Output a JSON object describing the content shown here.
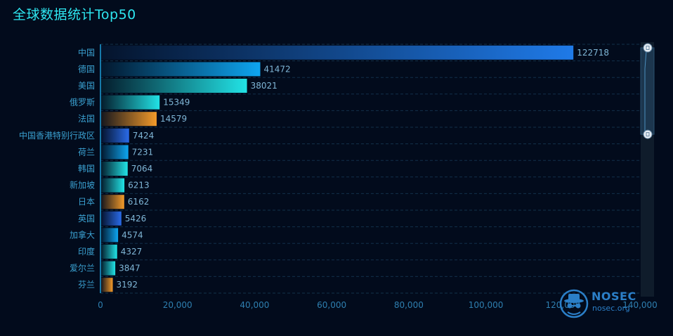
{
  "title": "全球数据统计Top50",
  "chart_data": {
    "type": "bar",
    "orientation": "horizontal",
    "categories": [
      "中国",
      "德国",
      "美国",
      "俄罗斯",
      "法国",
      "中国香港特别行政区",
      "荷兰",
      "韩国",
      "新加坡",
      "日本",
      "英国",
      "加拿大",
      "印度",
      "爱尔兰",
      "芬兰"
    ],
    "values": [
      122718,
      41472,
      38021,
      15349,
      14579,
      7424,
      7231,
      7064,
      6213,
      6162,
      5426,
      4574,
      4327,
      3847,
      3192
    ],
    "xlim": [
      0,
      140000
    ],
    "x_ticks": [
      "0",
      "20,000",
      "40,000",
      "60,000",
      "80,000",
      "100,000",
      "120,000",
      "140,000"
    ],
    "grid": true,
    "colors": {
      "blue": "#1f7ae8",
      "sky": "#0ea5f0",
      "cyan": "#22e3e6",
      "orange": "#f39a2a",
      "royal": "#2a6be8"
    },
    "bar_color_keys": [
      "blue",
      "sky",
      "cyan",
      "cyan",
      "orange",
      "royal",
      "sky",
      "cyan",
      "cyan",
      "orange",
      "royal",
      "sky",
      "cyan",
      "cyan",
      "orange"
    ]
  },
  "data_zoom": {
    "start_fraction": 0.0,
    "end_fraction": 0.34
  },
  "watermark": {
    "name": "NOSEC",
    "domain": "nosec.org",
    "icon": "hat-spy-logo"
  }
}
